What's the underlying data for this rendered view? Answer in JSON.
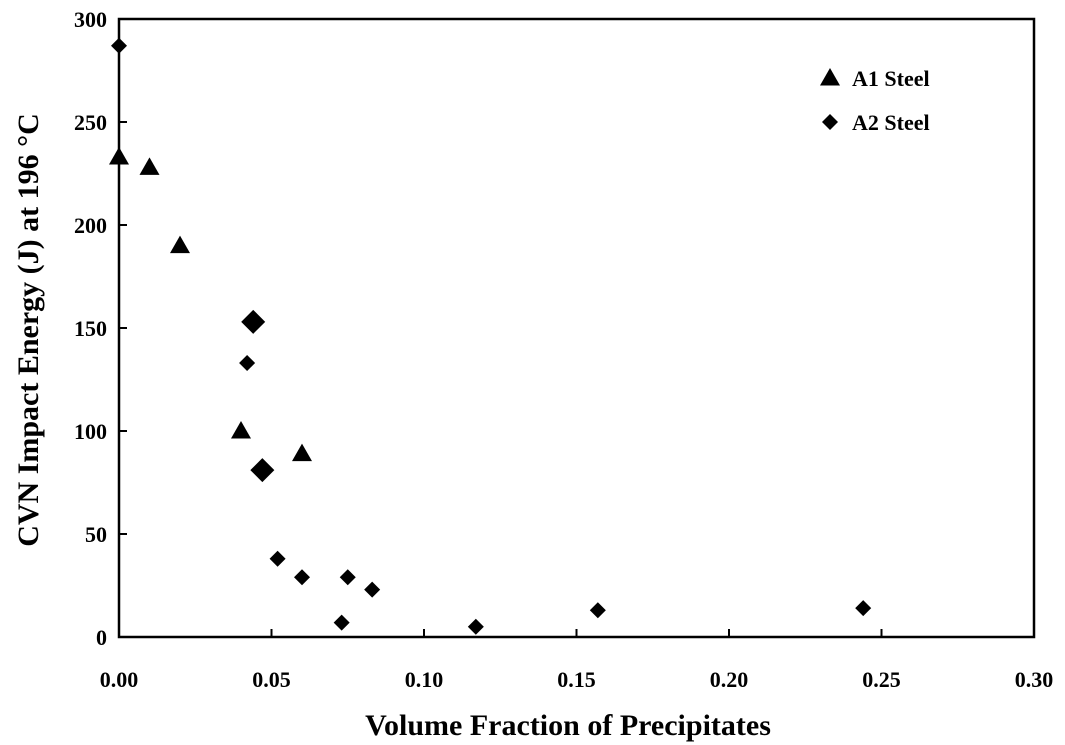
{
  "chart_data": {
    "type": "scatter",
    "title": "",
    "xlabel": "Volume Fraction of  Precipitates",
    "ylabel": "CVN Impact Energy (J) at 196 °C",
    "xlim": [
      0,
      0.3
    ],
    "ylim": [
      0,
      300
    ],
    "x_ticks": [
      "0.00",
      "0.05",
      "0.10",
      "0.15",
      "0.20",
      "0.25",
      "0.30"
    ],
    "y_ticks": [
      "0",
      "50",
      "100",
      "150",
      "200",
      "250",
      "300"
    ],
    "grid": false,
    "legend_position": "top-right",
    "series": [
      {
        "name": "A1 Steel",
        "marker": "triangle",
        "color": "#000000",
        "points": [
          {
            "x": 0.0,
            "y": 233
          },
          {
            "x": 0.01,
            "y": 228
          },
          {
            "x": 0.02,
            "y": 190
          },
          {
            "x": 0.04,
            "y": 100
          },
          {
            "x": 0.06,
            "y": 89
          }
        ]
      },
      {
        "name": "A2 Steel",
        "marker": "diamond",
        "color": "#000000",
        "points": [
          {
            "x": 0.0,
            "y": 287
          },
          {
            "x": 0.042,
            "y": 133
          },
          {
            "x": 0.044,
            "y": 153,
            "large": true
          },
          {
            "x": 0.047,
            "y": 81,
            "large": true
          },
          {
            "x": 0.052,
            "y": 38
          },
          {
            "x": 0.06,
            "y": 29
          },
          {
            "x": 0.073,
            "y": 7
          },
          {
            "x": 0.075,
            "y": 29
          },
          {
            "x": 0.083,
            "y": 23
          },
          {
            "x": 0.117,
            "y": 5
          },
          {
            "x": 0.157,
            "y": 13
          },
          {
            "x": 0.244,
            "y": 14
          }
        ]
      }
    ]
  }
}
